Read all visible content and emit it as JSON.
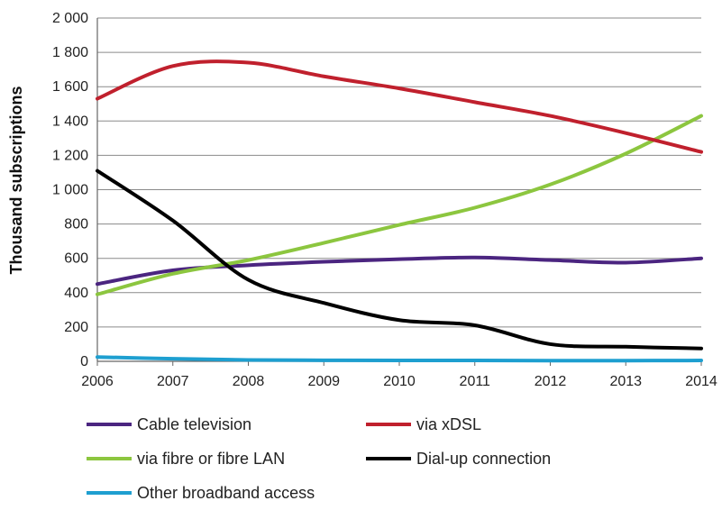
{
  "chart_data": {
    "type": "line",
    "title": "",
    "xlabel": "",
    "ylabel": "Thousand subscriptions",
    "x": [
      2006,
      2007,
      2008,
      2009,
      2010,
      2011,
      2012,
      2013,
      2014
    ],
    "x_tick_labels": [
      "2006",
      "2007",
      "2008",
      "2009",
      "2010",
      "2011",
      "2012",
      "2013",
      "2014"
    ],
    "ylim": [
      0,
      2000
    ],
    "y_tick_values": [
      0,
      200,
      400,
      600,
      800,
      1000,
      1200,
      1400,
      1600,
      1800,
      2000
    ],
    "y_tick_labels": [
      "0",
      "200",
      "400",
      "600",
      "800",
      "1 000",
      "1 200",
      "1 400",
      "1 600",
      "1 800",
      "2 000"
    ],
    "grid": true,
    "legend_position": "bottom",
    "series": [
      {
        "name": "Cable television",
        "color": "#4b2580",
        "values": [
          450,
          530,
          560,
          580,
          595,
          605,
          590,
          575,
          600
        ]
      },
      {
        "name": "via xDSL",
        "color": "#c0202d",
        "values": [
          1530,
          1720,
          1740,
          1660,
          1590,
          1510,
          1430,
          1330,
          1220
        ]
      },
      {
        "name": "via fibre or fibre LAN",
        "color": "#8cc63f",
        "values": [
          390,
          510,
          590,
          690,
          795,
          895,
          1030,
          1210,
          1430
        ]
      },
      {
        "name": "Dial-up connection",
        "color": "#000000",
        "values": [
          1110,
          820,
          475,
          340,
          240,
          210,
          100,
          85,
          75
        ]
      },
      {
        "name": "Other broadband access",
        "color": "#1e9fd0",
        "values": [
          25,
          15,
          8,
          6,
          5,
          5,
          4,
          4,
          5
        ]
      }
    ]
  },
  "legend_order": [
    [
      0,
      1
    ],
    [
      2,
      3
    ],
    [
      4
    ]
  ]
}
